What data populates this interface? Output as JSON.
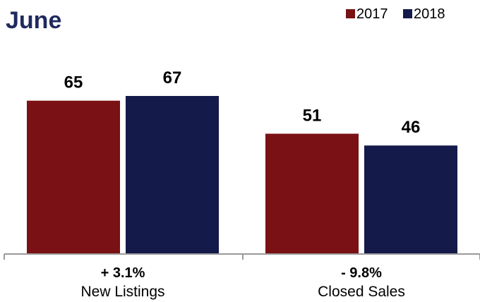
{
  "chart_data": {
    "type": "bar",
    "title": "June",
    "categories": [
      "New Listings",
      "Closed Sales"
    ],
    "changes": [
      "+ 3.1%",
      "- 9.8%"
    ],
    "series": [
      {
        "name": "2017",
        "values": [
          65,
          51
        ],
        "color": "#7a1115"
      },
      {
        "name": "2018",
        "values": [
          67,
          46
        ],
        "color": "#141a4a"
      }
    ],
    "legend": "top-right",
    "ylim": [
      0,
      67
    ],
    "grid": false
  }
}
